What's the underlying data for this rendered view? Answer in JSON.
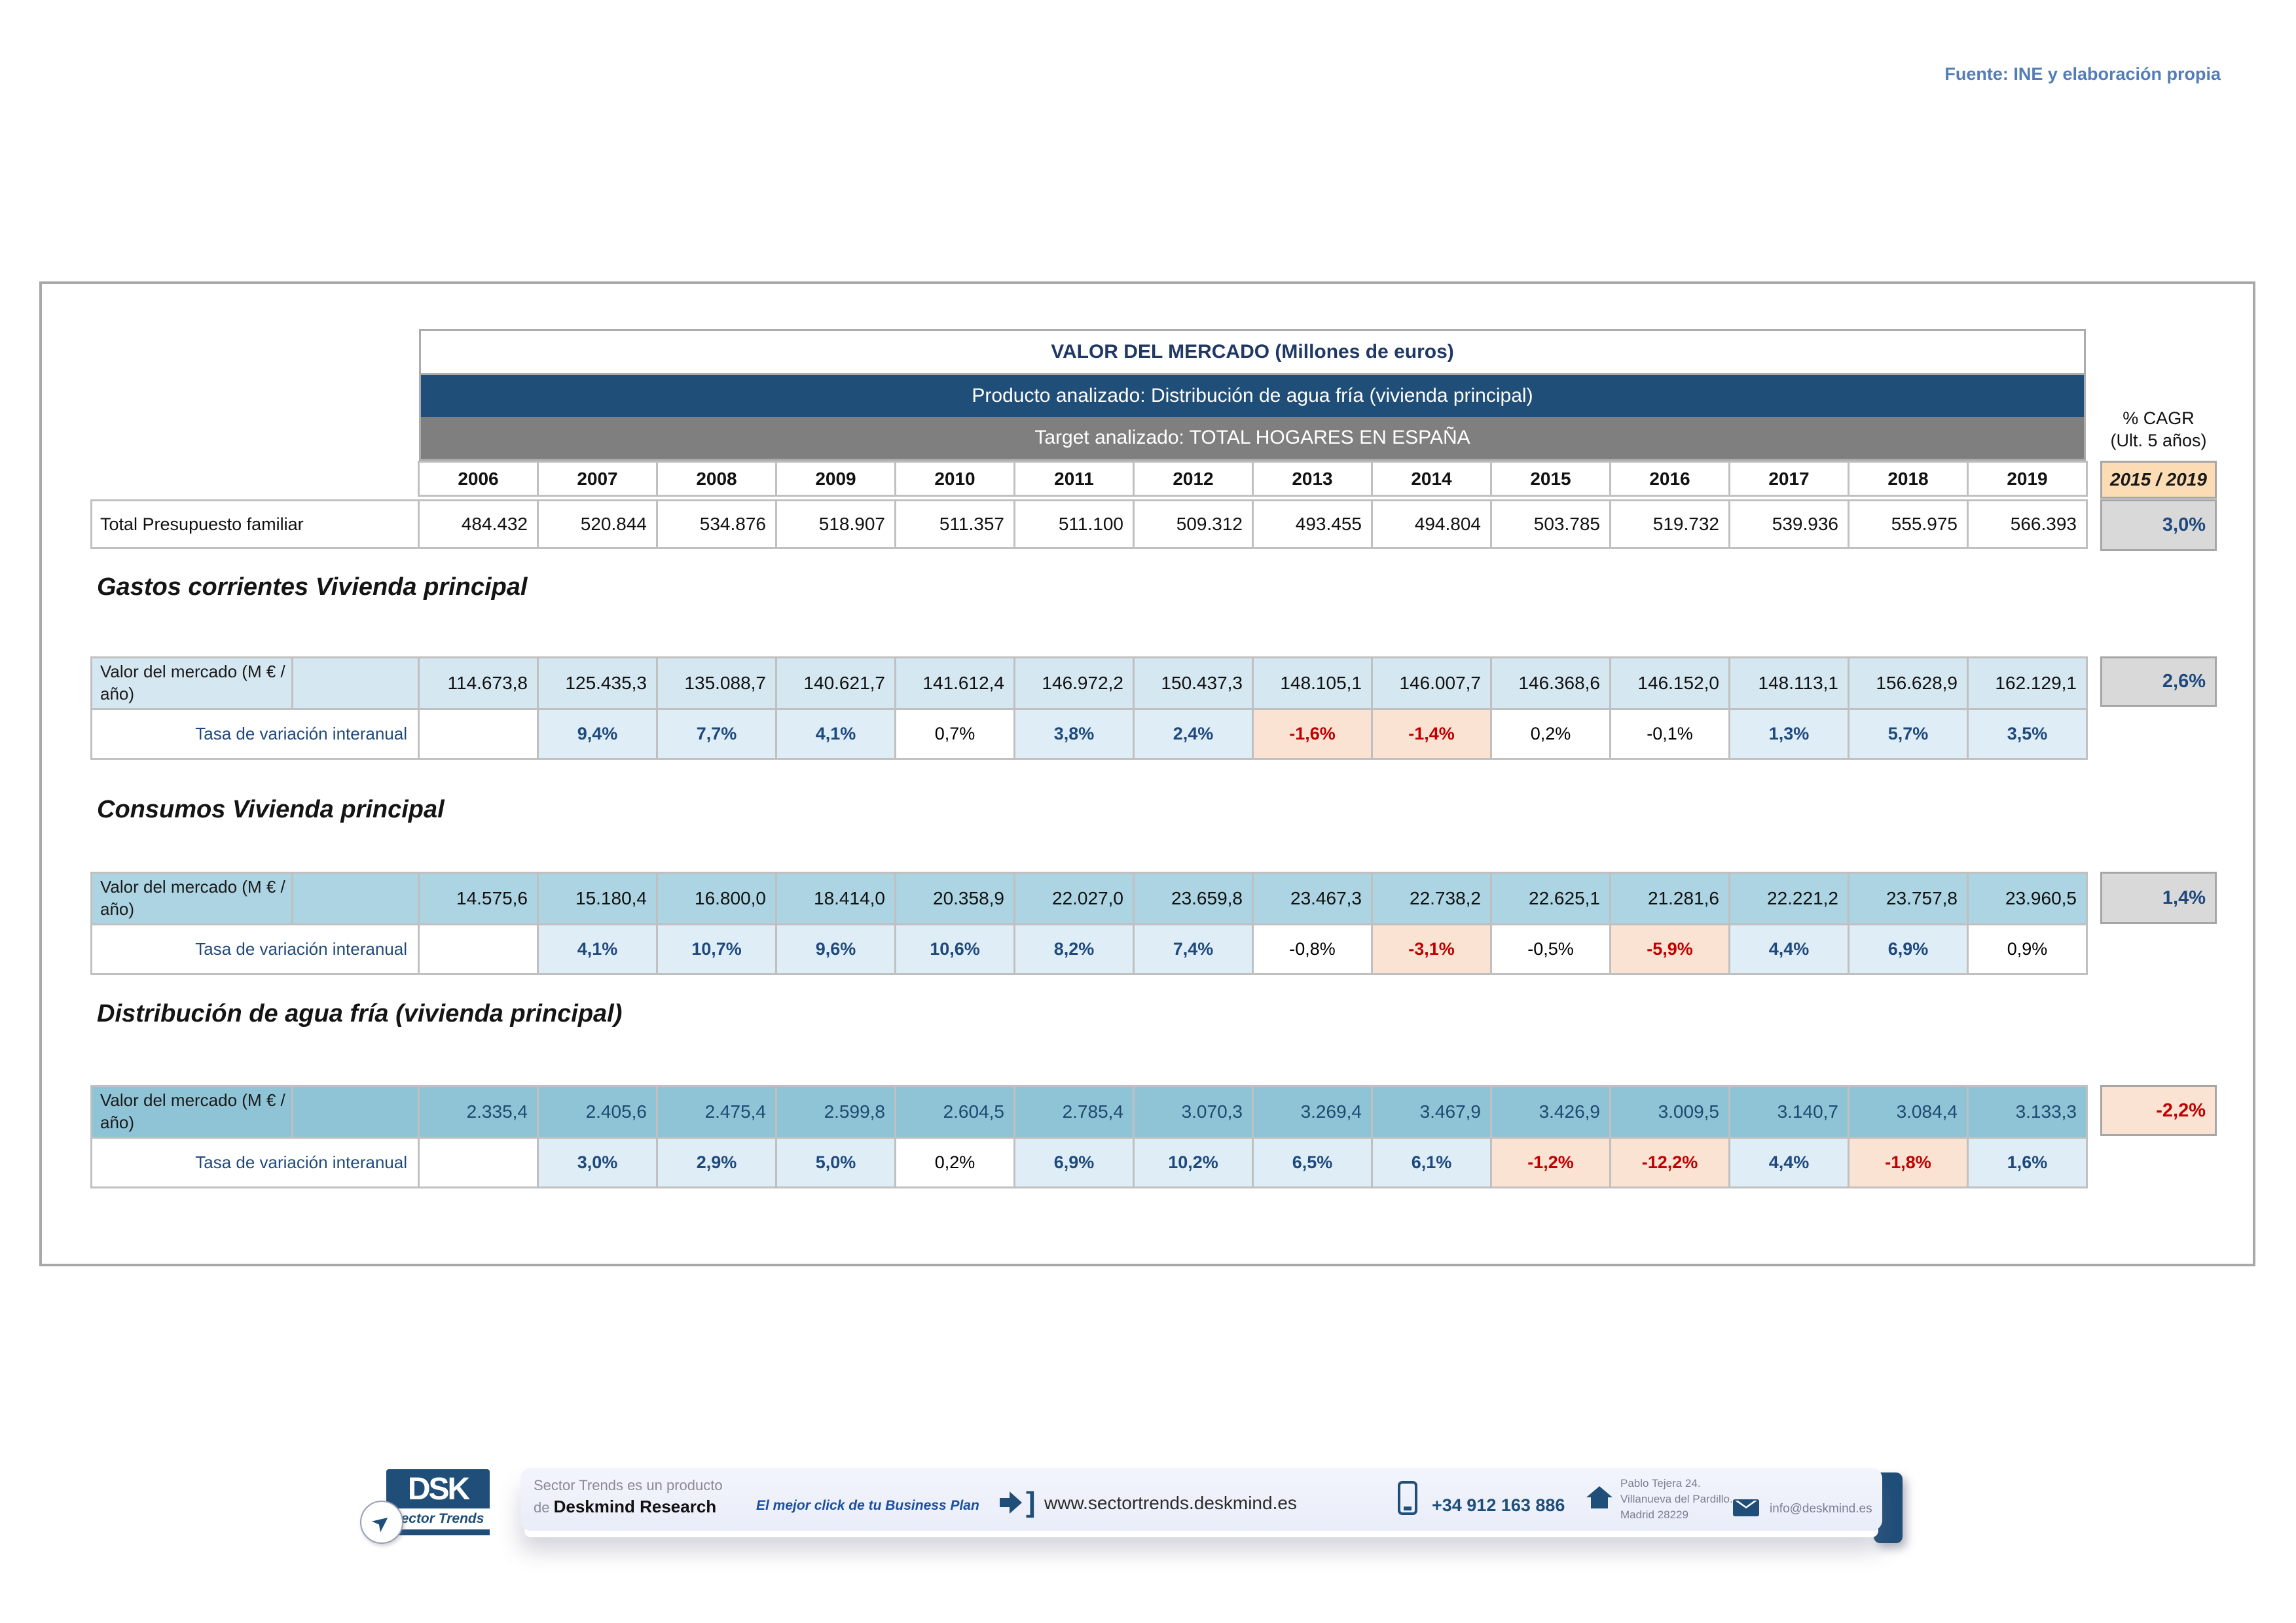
{
  "page": {
    "fuente": "Fuente: INE y elaboración propia"
  },
  "market_table": {
    "title": "VALOR DEL MERCADO (Millones de euros)",
    "producto": "Producto analizado: Distribución de agua fría (vivienda principal)",
    "target": "Target analizado: TOTAL HOGARES EN ESPAÑA",
    "years": [
      "2006",
      "2007",
      "2008",
      "2009",
      "2010",
      "2011",
      "2012",
      "2013",
      "2014",
      "2015",
      "2016",
      "2017",
      "2018",
      "2019"
    ],
    "cagr_label_line1": "% CAGR",
    "cagr_label_line2": "(Ult. 5 años)",
    "cagr_period": "2015 / 2019",
    "total_row": {
      "label": "Total Presupuesto familiar",
      "values": [
        "484.432",
        "520.844",
        "534.876",
        "518.907",
        "511.357",
        "511.100",
        "509.312",
        "493.455",
        "494.804",
        "503.785",
        "519.732",
        "539.936",
        "555.975",
        "566.393"
      ],
      "cagr": {
        "value": "3,0%",
        "style": "pos"
      }
    },
    "sections": [
      {
        "title": "Gastos corrientes Vivienda principal",
        "value_label": "Valor del mercado (M € / año)",
        "value_shade": "light",
        "values": [
          "114.673,8",
          "125.435,3",
          "135.088,7",
          "140.621,7",
          "141.612,4",
          "146.972,2",
          "150.437,3",
          "148.105,1",
          "146.007,7",
          "146.368,6",
          "146.152,0",
          "148.113,1",
          "156.628,9",
          "162.129,1"
        ],
        "rate_label": "Tasa de variación interanual",
        "rates": [
          {
            "value": "",
            "style": "empty"
          },
          {
            "value": "9,4%",
            "style": "pos"
          },
          {
            "value": "7,7%",
            "style": "pos"
          },
          {
            "value": "4,1%",
            "style": "pos"
          },
          {
            "value": "0,7%",
            "style": "flat"
          },
          {
            "value": "3,8%",
            "style": "pos"
          },
          {
            "value": "2,4%",
            "style": "pos"
          },
          {
            "value": "-1,6%",
            "style": "neg"
          },
          {
            "value": "-1,4%",
            "style": "neg"
          },
          {
            "value": "0,2%",
            "style": "flat"
          },
          {
            "value": "-0,1%",
            "style": "flat"
          },
          {
            "value": "1,3%",
            "style": "pos"
          },
          {
            "value": "5,7%",
            "style": "pos"
          },
          {
            "value": "3,5%",
            "style": "pos"
          }
        ],
        "cagr": {
          "value": "2,6%",
          "style": "pos"
        }
      },
      {
        "title": "Consumos Vivienda principal",
        "value_label": "Valor del mercado (M € / año)",
        "value_shade": "medium",
        "values": [
          "14.575,6",
          "15.180,4",
          "16.800,0",
          "18.414,0",
          "20.358,9",
          "22.027,0",
          "23.659,8",
          "23.467,3",
          "22.738,2",
          "22.625,1",
          "21.281,6",
          "22.221,2",
          "23.757,8",
          "23.960,5"
        ],
        "rate_label": "Tasa de variación interanual",
        "rates": [
          {
            "value": "",
            "style": "empty"
          },
          {
            "value": "4,1%",
            "style": "pos"
          },
          {
            "value": "10,7%",
            "style": "pos"
          },
          {
            "value": "9,6%",
            "style": "pos"
          },
          {
            "value": "10,6%",
            "style": "pos"
          },
          {
            "value": "8,2%",
            "style": "pos"
          },
          {
            "value": "7,4%",
            "style": "pos"
          },
          {
            "value": "-0,8%",
            "style": "flat"
          },
          {
            "value": "-3,1%",
            "style": "neg"
          },
          {
            "value": "-0,5%",
            "style": "flat"
          },
          {
            "value": "-5,9%",
            "style": "neg"
          },
          {
            "value": "4,4%",
            "style": "pos"
          },
          {
            "value": "6,9%",
            "style": "pos"
          },
          {
            "value": "0,9%",
            "style": "flat"
          }
        ],
        "cagr": {
          "value": "1,4%",
          "style": "pos"
        }
      },
      {
        "title": "Distribución de agua fría (vivienda principal)",
        "value_label": "Valor del mercado (M € / año)",
        "value_shade": "dark",
        "values": [
          "2.335,4",
          "2.405,6",
          "2.475,4",
          "2.599,8",
          "2.604,5",
          "2.785,4",
          "3.070,3",
          "3.269,4",
          "3.467,9",
          "3.426,9",
          "3.009,5",
          "3.140,7",
          "3.084,4",
          "3.133,3"
        ],
        "rate_label": "Tasa de variación interanual",
        "rates": [
          {
            "value": "",
            "style": "empty"
          },
          {
            "value": "3,0%",
            "style": "pos"
          },
          {
            "value": "2,9%",
            "style": "pos"
          },
          {
            "value": "5,0%",
            "style": "pos"
          },
          {
            "value": "0,2%",
            "style": "flat"
          },
          {
            "value": "6,9%",
            "style": "pos"
          },
          {
            "value": "10,2%",
            "style": "pos"
          },
          {
            "value": "6,5%",
            "style": "pos"
          },
          {
            "value": "6,1%",
            "style": "pos"
          },
          {
            "value": "-1,2%",
            "style": "neg"
          },
          {
            "value": "-12,2%",
            "style": "neg"
          },
          {
            "value": "4,4%",
            "style": "pos"
          },
          {
            "value": "-1,8%",
            "style": "neg"
          },
          {
            "value": "1,6%",
            "style": "pos"
          }
        ],
        "cagr": {
          "value": "-2,2%",
          "style": "neg"
        }
      }
    ]
  },
  "footer": {
    "logo_text": "DSK",
    "logo_sub": "Sector Trends",
    "product_line1": "Sector Trends es un producto",
    "product_line2_prefix": "de ",
    "product_line2_bold": "Deskmind Research",
    "tagline": "El mejor click de tu Business Plan",
    "website": "www.sectortrends.deskmind.es",
    "phone": "+34 912 163 886",
    "address_line1": "Pablo Tejera 24.",
    "address_line2": "Villanueva del Pardillo.",
    "address_line3": "Madrid 28229",
    "email": "info@deskmind.es"
  }
}
